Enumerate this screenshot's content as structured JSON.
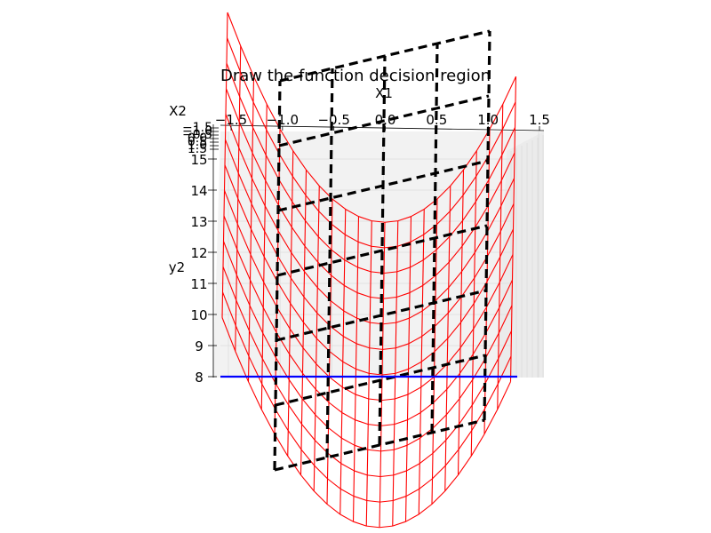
{
  "chart_data": {
    "type": "surface3d",
    "title": "Draw the function decision region",
    "xlabel": "X1",
    "ylabel": "y2",
    "zlabel": "X2",
    "x_ticks": [
      "−1.5",
      "−1.0",
      "−0.5",
      "0.0",
      "0.5",
      "1.0",
      "1.5"
    ],
    "x_range": [
      -1.5,
      1.5
    ],
    "z_ticks": [
      "8",
      "9",
      "10",
      "11",
      "12",
      "13",
      "14",
      "15"
    ],
    "z_range": [
      7.8,
      15.5
    ],
    "x2_tick_labels_overlapping": [
      "−1.5",
      "−1.0",
      "−0.5",
      "0.0",
      "0.5",
      "1.0",
      "1.5"
    ],
    "grid": true,
    "series": [
      {
        "kind": "wireframe",
        "formula": "y = 8 + 3*x1^2 + 1.5*x2",
        "color": "#ff0000",
        "grid_x1": [
          -1.5,
          -1.375,
          -1.25,
          -1.125,
          -1.0,
          -0.875,
          -0.75,
          -0.625,
          -0.5,
          -0.375,
          -0.25,
          -0.125,
          0.0,
          0.125,
          0.25,
          0.375,
          0.5,
          0.625,
          0.75,
          0.875,
          1.0,
          1.125,
          1.25
        ],
        "grid_x2": [
          -1.5,
          -1.25,
          -1.0,
          -0.75,
          -0.5,
          -0.25,
          0.0,
          0.25,
          0.5,
          0.75,
          1.0,
          1.25,
          1.5
        ]
      },
      {
        "kind": "plane",
        "formula": "y = 12 + 0.8*x1 + 2.4*x2",
        "color": "#000000",
        "line_style": "dashed",
        "grid_x1": [
          -1.0,
          -0.5,
          0.0,
          0.5,
          1.0
        ],
        "grid_x2": [
          -1.5,
          -1.0,
          -0.5,
          0.0,
          0.5,
          1.0,
          1.5
        ]
      },
      {
        "kind": "line",
        "formula": "y = 8 at x2 = 1.5",
        "color": "#0000ff",
        "x1_range": [
          -1.5,
          1.25
        ],
        "y": 8.0
      }
    ]
  }
}
